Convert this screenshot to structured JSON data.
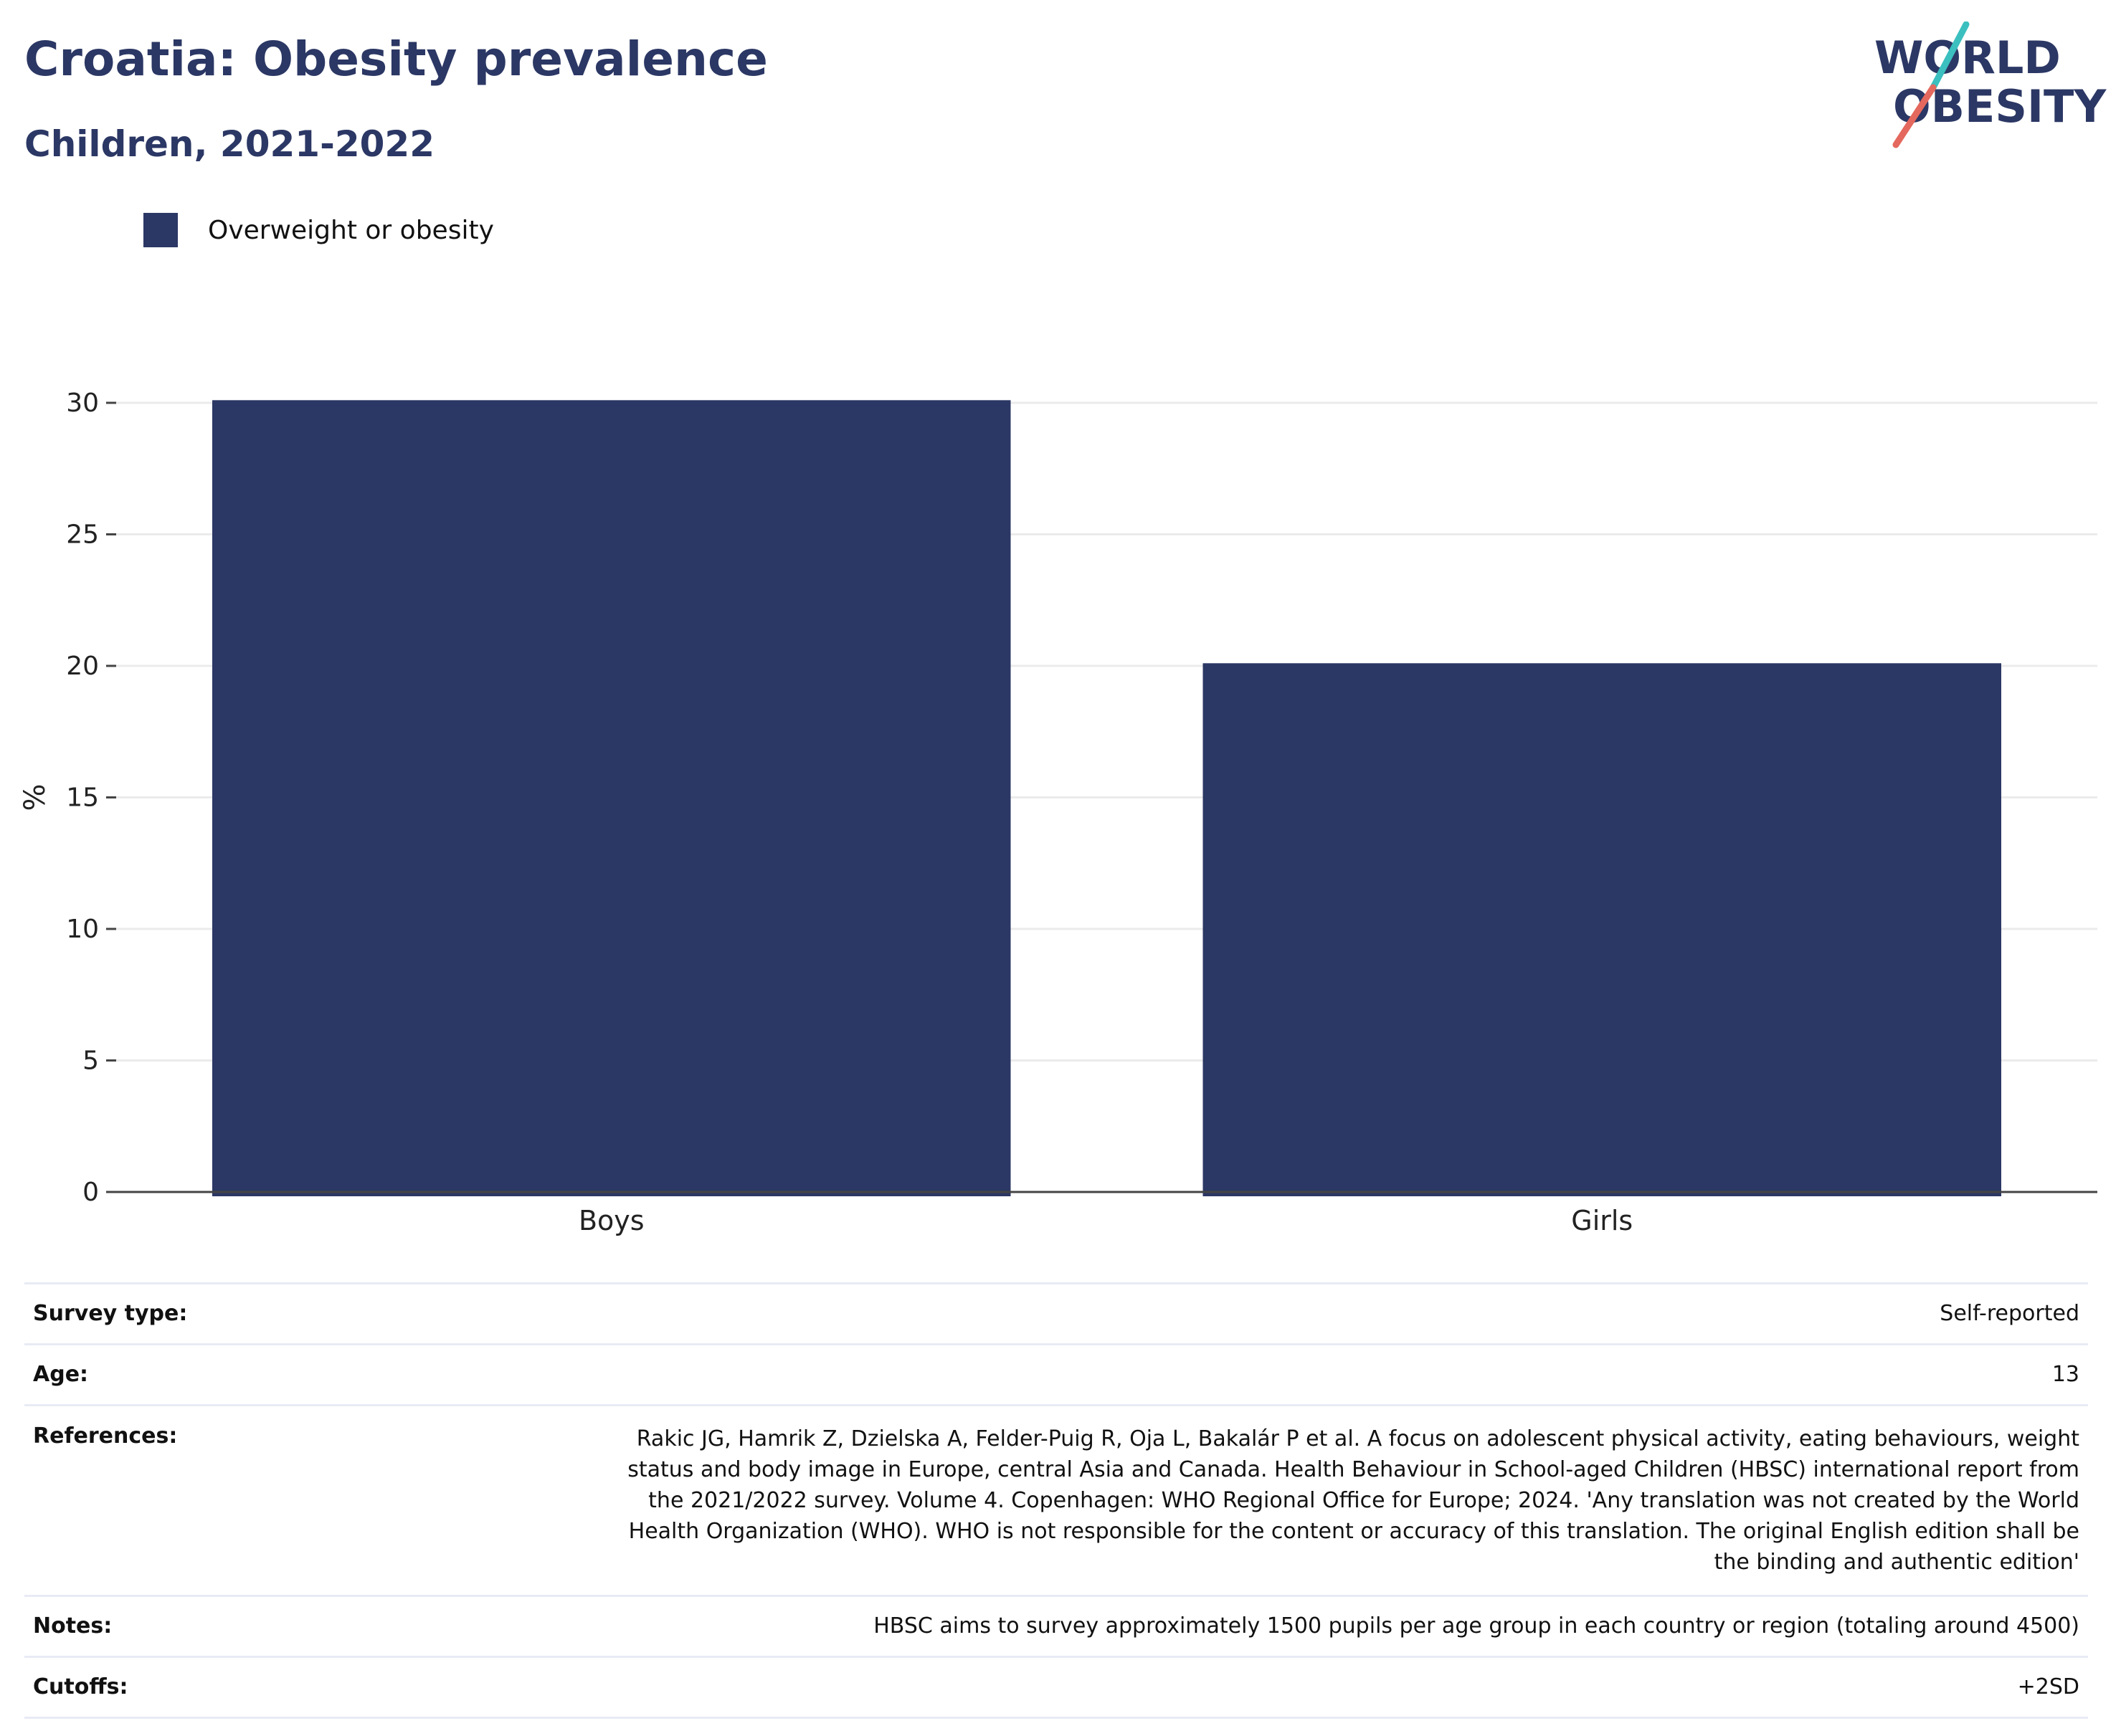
{
  "header": {
    "title": "Croatia: Obesity prevalence",
    "subtitle": "Children, 2021-2022"
  },
  "logo": {
    "line1": "WORLD",
    "line2": "OBESITY",
    "colors": {
      "text": "#2b3764",
      "accent_top": "#3bbfbf",
      "accent_bottom": "#e4685d"
    }
  },
  "legend": {
    "items": [
      {
        "label": "Overweight or obesity",
        "color": "#2b3764"
      }
    ]
  },
  "chart_data": {
    "type": "bar",
    "categories": [
      "Boys",
      "Girls"
    ],
    "series": [
      {
        "name": "Overweight or obesity",
        "values": [
          30.1,
          20.1
        ],
        "color": "#2b3764"
      }
    ],
    "ylabel": "%",
    "ylim": [
      0,
      30
    ],
    "yticks": [
      0,
      5,
      10,
      15,
      20,
      25,
      30
    ],
    "grid": true,
    "legend_position": "top-left"
  },
  "info": [
    {
      "key": "Survey type:",
      "value": "Self-reported"
    },
    {
      "key": "Age:",
      "value": "13"
    },
    {
      "key": "References:",
      "value": "Rakic JG, Hamrik Z, Dzielska A, Felder-Puig R, Oja L, Bakalár P et al. A focus on adolescent physical activity, eating behaviours, weight status and body image in Europe, central Asia and Canada. Health Behaviour in School-aged Children (HBSC) international report from the 2021/2022 survey. Volume 4. Copenhagen: WHO Regional Office for Europe; 2024. 'Any translation was not created by the World Health Organization (WHO). WHO is not responsible for the content or accuracy of this translation. The original English edition shall be the binding and authentic edition'"
    },
    {
      "key": "Notes:",
      "value": "HBSC aims to survey approximately 1500 pupils per age group in each country or region (totaling around 4500)"
    },
    {
      "key": "Cutoffs:",
      "value": "+2SD"
    }
  ]
}
